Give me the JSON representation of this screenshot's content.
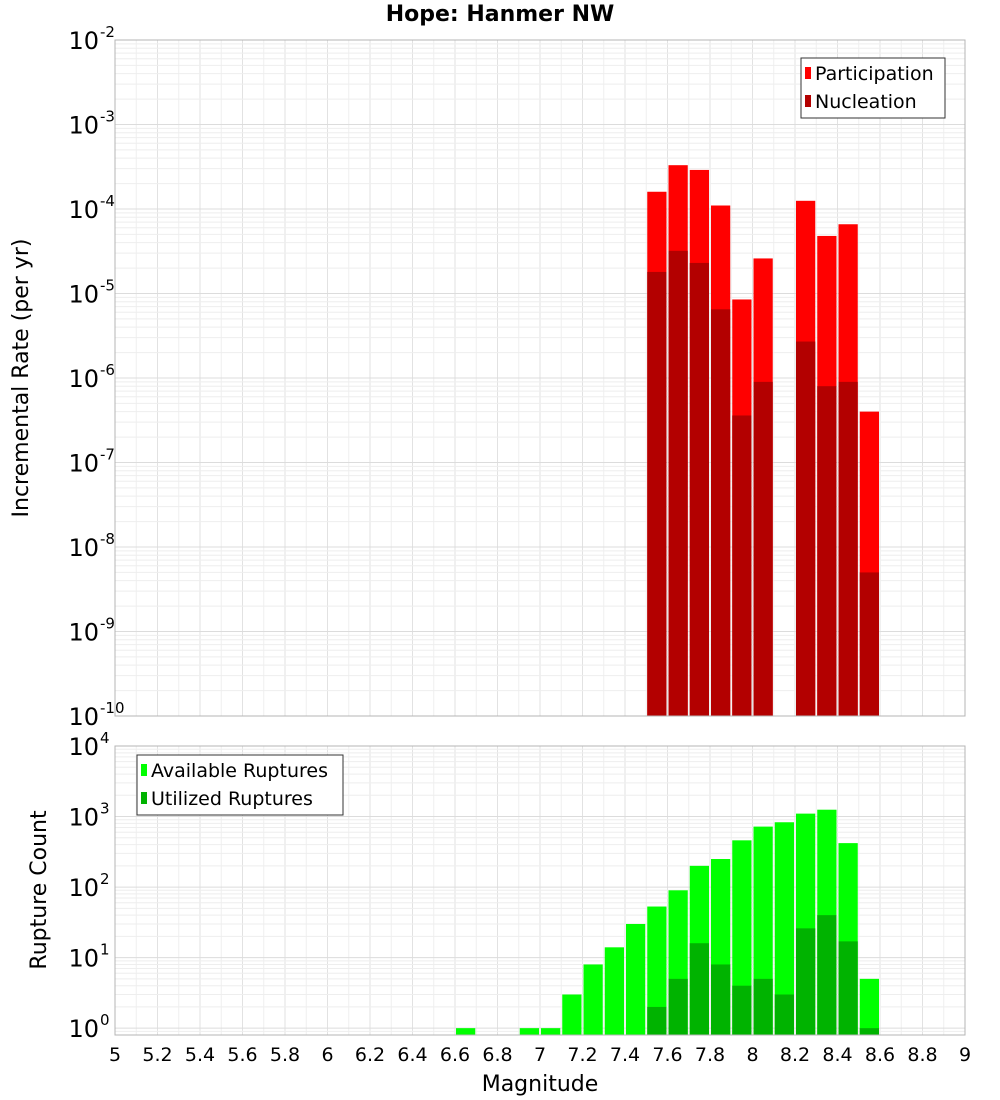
{
  "chart_data": [
    {
      "type": "bar",
      "title": "Hope: Hanmer NW",
      "xlabel": "",
      "ylabel": "Incremental Rate (per yr)",
      "yscale": "log",
      "xlim": [
        5,
        9
      ],
      "ylim": [
        1e-10,
        0.01
      ],
      "y_ticks": [
        {
          "base": "10",
          "exp": "-10"
        },
        {
          "base": "10",
          "exp": "-9"
        },
        {
          "base": "10",
          "exp": "-8"
        },
        {
          "base": "10",
          "exp": "-7"
        },
        {
          "base": "10",
          "exp": "-6"
        },
        {
          "base": "10",
          "exp": "-5"
        },
        {
          "base": "10",
          "exp": "-4"
        },
        {
          "base": "10",
          "exp": "-3"
        },
        {
          "base": "10",
          "exp": "-2"
        }
      ],
      "grid": true,
      "legend_position": "top-right",
      "bin_width": 0.1,
      "series": [
        {
          "name": "Participation",
          "color": "#ff0000",
          "x": [
            7.55,
            7.65,
            7.75,
            7.85,
            7.95,
            8.05,
            8.25,
            8.35,
            8.45,
            8.55
          ],
          "values": [
            0.00016,
            0.00033,
            0.00029,
            0.00011,
            8.5e-06,
            2.6e-05,
            0.000125,
            4.8e-05,
            6.6e-05,
            4e-07
          ]
        },
        {
          "name": "Nucleation",
          "color": "#b30000",
          "x": [
            7.55,
            7.65,
            7.75,
            7.85,
            7.95,
            8.05,
            8.25,
            8.35,
            8.45,
            8.55
          ],
          "values": [
            1.8e-05,
            3.2e-05,
            2.3e-05,
            6.5e-06,
            3.6e-07,
            9e-07,
            2.7e-06,
            8e-07,
            9e-07,
            5e-09
          ]
        }
      ]
    },
    {
      "type": "bar",
      "title": "",
      "xlabel": "Magnitude",
      "ylabel": "Rupture Count",
      "yscale": "log",
      "xlim": [
        5,
        9
      ],
      "ylim": [
        0.8,
        10000
      ],
      "y_ticks": [
        {
          "base": "10",
          "exp": "0"
        },
        {
          "base": "10",
          "exp": "1"
        },
        {
          "base": "10",
          "exp": "2"
        },
        {
          "base": "10",
          "exp": "3"
        },
        {
          "base": "10",
          "exp": "4"
        }
      ],
      "x_ticks": [
        "5",
        "5.2",
        "5.4",
        "5.6",
        "5.8",
        "6",
        "6.2",
        "6.4",
        "6.6",
        "6.8",
        "7",
        "7.2",
        "7.4",
        "7.6",
        "7.8",
        "8",
        "8.2",
        "8.4",
        "8.6",
        "8.8",
        "9"
      ],
      "grid": true,
      "legend_position": "top-left",
      "bin_width": 0.1,
      "series": [
        {
          "name": "Available Ruptures",
          "color": "#00ff00",
          "x": [
            6.65,
            6.95,
            7.05,
            7.15,
            7.25,
            7.35,
            7.45,
            7.55,
            7.65,
            7.75,
            7.85,
            7.95,
            8.05,
            8.15,
            8.25,
            8.35,
            8.45,
            8.55
          ],
          "values": [
            1,
            1,
            1,
            3,
            8,
            14,
            30,
            53,
            90,
            200,
            250,
            460,
            720,
            830,
            1100,
            1250,
            420,
            5
          ]
        },
        {
          "name": "Utilized Ruptures",
          "color": "#00b300",
          "x": [
            7.55,
            7.65,
            7.75,
            7.85,
            7.95,
            8.05,
            8.15,
            8.25,
            8.35,
            8.45,
            8.55
          ],
          "values": [
            2,
            5,
            16,
            8,
            4,
            5,
            3,
            26,
            40,
            17,
            1
          ]
        }
      ]
    }
  ]
}
